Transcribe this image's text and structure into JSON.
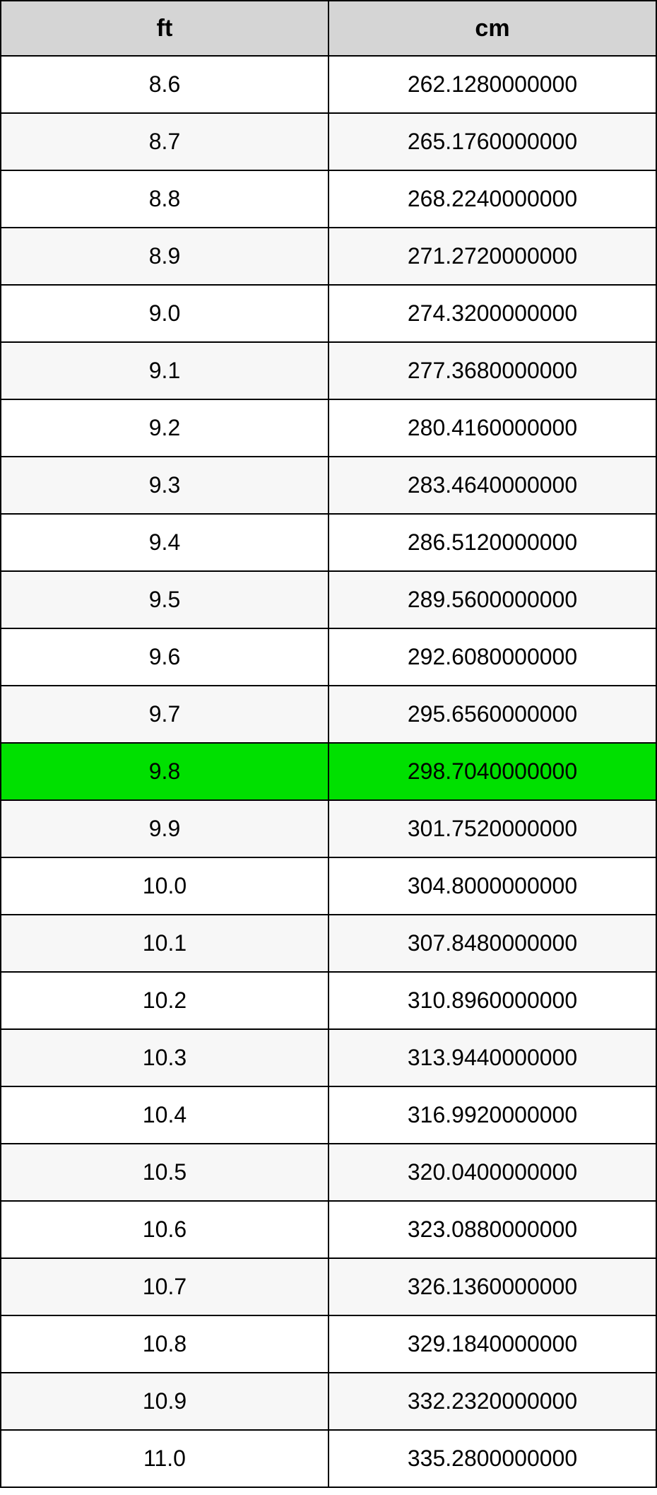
{
  "table": {
    "columns": [
      "ft",
      "cm"
    ],
    "header_bg": "#d5d5d5",
    "border_color": "#000000",
    "row_bg_odd": "#ffffff",
    "row_bg_even": "#f7f7f7",
    "highlight_bg": "#00e000",
    "header_fontsize": 34,
    "cell_fontsize": 32,
    "text_color": "#000000",
    "highlighted_index": 12,
    "rows": [
      {
        "ft": "8.6",
        "cm": "262.1280000000"
      },
      {
        "ft": "8.7",
        "cm": "265.1760000000"
      },
      {
        "ft": "8.8",
        "cm": "268.2240000000"
      },
      {
        "ft": "8.9",
        "cm": "271.2720000000"
      },
      {
        "ft": "9.0",
        "cm": "274.3200000000"
      },
      {
        "ft": "9.1",
        "cm": "277.3680000000"
      },
      {
        "ft": "9.2",
        "cm": "280.4160000000"
      },
      {
        "ft": "9.3",
        "cm": "283.4640000000"
      },
      {
        "ft": "9.4",
        "cm": "286.5120000000"
      },
      {
        "ft": "9.5",
        "cm": "289.5600000000"
      },
      {
        "ft": "9.6",
        "cm": "292.6080000000"
      },
      {
        "ft": "9.7",
        "cm": "295.6560000000"
      },
      {
        "ft": "9.8",
        "cm": "298.7040000000"
      },
      {
        "ft": "9.9",
        "cm": "301.7520000000"
      },
      {
        "ft": "10.0",
        "cm": "304.8000000000"
      },
      {
        "ft": "10.1",
        "cm": "307.8480000000"
      },
      {
        "ft": "10.2",
        "cm": "310.8960000000"
      },
      {
        "ft": "10.3",
        "cm": "313.9440000000"
      },
      {
        "ft": "10.4",
        "cm": "316.9920000000"
      },
      {
        "ft": "10.5",
        "cm": "320.0400000000"
      },
      {
        "ft": "10.6",
        "cm": "323.0880000000"
      },
      {
        "ft": "10.7",
        "cm": "326.1360000000"
      },
      {
        "ft": "10.8",
        "cm": "329.1840000000"
      },
      {
        "ft": "10.9",
        "cm": "332.2320000000"
      },
      {
        "ft": "11.0",
        "cm": "335.2800000000"
      }
    ]
  }
}
